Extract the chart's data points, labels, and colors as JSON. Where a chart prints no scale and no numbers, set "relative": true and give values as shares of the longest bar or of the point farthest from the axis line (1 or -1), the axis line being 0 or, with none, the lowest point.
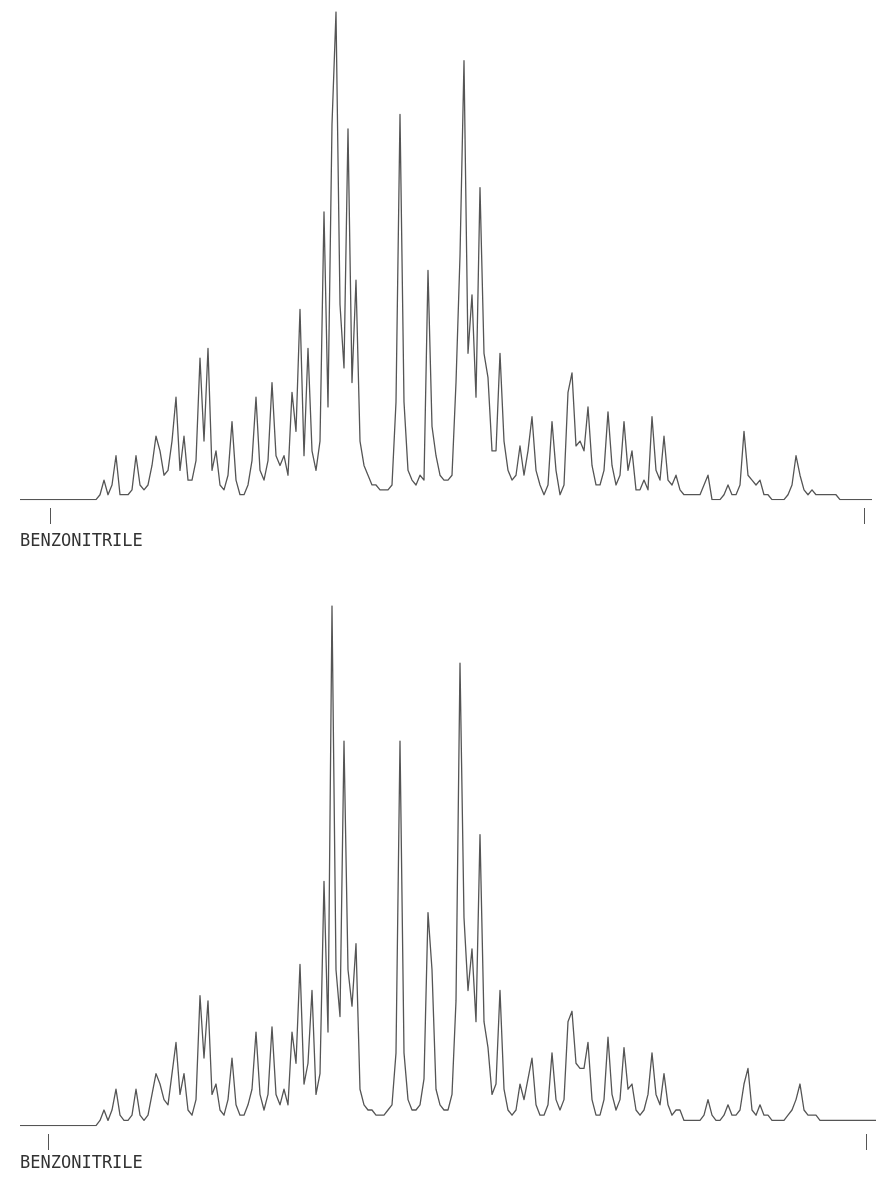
{
  "chart_data": [
    {
      "type": "line",
      "title": "BENZONITRILE",
      "relative": true,
      "color": "#555555",
      "marker": "none",
      "line_style": "solid",
      "categories": [
        null,
        null,
        null,
        null,
        null,
        null,
        null,
        null,
        null,
        null,
        null,
        null,
        null,
        null,
        null,
        null,
        null,
        null,
        null,
        null,
        null,
        null,
        null,
        null,
        null,
        null,
        null,
        null,
        null,
        null,
        null,
        null,
        null,
        null,
        null,
        null,
        null,
        null,
        null,
        null,
        null,
        null,
        null,
        null,
        null,
        null,
        null,
        null,
        null,
        null,
        null,
        null,
        null,
        null,
        null,
        null,
        null,
        null,
        null,
        null,
        null,
        null,
        null,
        null,
        null,
        null,
        null,
        null,
        null,
        null,
        null,
        null,
        null,
        null,
        null,
        null,
        null,
        null,
        null,
        null,
        null,
        null,
        null,
        null,
        null,
        null,
        null,
        null,
        null,
        null,
        null,
        null,
        null,
        null,
        null,
        null,
        null,
        null,
        null,
        null,
        null,
        null,
        null,
        null,
        null,
        null,
        null,
        null,
        null,
        null,
        null,
        null,
        null,
        null,
        null,
        null,
        null,
        null,
        null,
        null,
        null,
        null,
        null,
        null,
        null,
        null,
        null,
        null,
        null,
        null,
        null,
        null,
        null,
        null,
        null,
        null,
        null,
        null,
        null,
        null,
        null,
        null,
        null,
        null,
        null,
        null,
        null,
        null,
        null,
        null,
        null,
        null,
        null,
        null,
        null,
        null,
        null,
        null,
        null,
        null,
        null,
        null,
        null,
        null,
        null,
        null,
        null,
        null,
        null,
        null,
        null,
        null,
        null,
        null,
        null,
        null,
        null,
        null,
        null,
        null,
        null,
        null,
        null,
        null,
        null,
        null,
        null,
        null,
        null,
        null,
        null,
        null,
        null,
        null,
        null,
        null,
        null,
        null,
        null,
        null,
        null,
        null,
        null,
        null,
        null,
        null,
        null,
        null,
        null,
        null,
        null,
        null,
        null,
        null
      ],
      "values": [
        0,
        0,
        0,
        0,
        0,
        0,
        0,
        0,
        0,
        0,
        0,
        0,
        0,
        0,
        0,
        0,
        0,
        0,
        0,
        0,
        0.01,
        0.04,
        0.01,
        0.03,
        0.09,
        0.01,
        0.01,
        0.01,
        0.02,
        0.09,
        0.03,
        0.02,
        0.03,
        0.07,
        0.13,
        0.1,
        0.05,
        0.06,
        0.12,
        0.21,
        0.06,
        0.13,
        0.04,
        0.04,
        0.08,
        0.29,
        0.12,
        0.31,
        0.06,
        0.1,
        0.03,
        0.02,
        0.05,
        0.16,
        0.04,
        0.01,
        0.01,
        0.03,
        0.08,
        0.21,
        0.06,
        0.04,
        0.08,
        0.24,
        0.09,
        0.07,
        0.09,
        0.05,
        0.22,
        0.14,
        0.39,
        0.09,
        0.31,
        0.1,
        0.06,
        0.12,
        0.59,
        0.19,
        0.77,
        1,
        0.4,
        0.27,
        0.76,
        0.24,
        0.45,
        0.12,
        0.07,
        0.05,
        0.03,
        0.03,
        0.02,
        0.02,
        0.02,
        0.03,
        0.2,
        0.79,
        0.2,
        0.06,
        0.04,
        0.03,
        0.05,
        0.04,
        0.47,
        0.15,
        0.09,
        0.05,
        0.04,
        0.04,
        0.05,
        0.24,
        0.5,
        0.9,
        0.3,
        0.42,
        0.21,
        0.64,
        0.3,
        0.25,
        0.1,
        0.1,
        0.3,
        0.12,
        0.06,
        0.04,
        0.05,
        0.11,
        0.05,
        0.1,
        0.17,
        0.06,
        0.03,
        0.01,
        0.03,
        0.16,
        0.06,
        0.01,
        0.03,
        0.22,
        0.26,
        0.11,
        0.12,
        0.1,
        0.19,
        0.07,
        0.03,
        0.03,
        0.06,
        0.18,
        0.07,
        0.03,
        0.05,
        0.16,
        0.06,
        0.1,
        0.02,
        0.02,
        0.04,
        0.02,
        0.17,
        0.06,
        0.04,
        0.13,
        0.04,
        0.03,
        0.05,
        0.02,
        0.01,
        0.01,
        0.01,
        0.01,
        0.01,
        0.03,
        0.05,
        0,
        0,
        0,
        0.01,
        0.03,
        0.01,
        0.01,
        0.03,
        0.14,
        0.05,
        0.04,
        0.03,
        0.04,
        0.01,
        0.01,
        0,
        0,
        0,
        0,
        0.01,
        0.03,
        0.09,
        0.05,
        0.02,
        0.01,
        0.02,
        0.01,
        0.01,
        0.01,
        0.01,
        0.01,
        0.01,
        0,
        0,
        0,
        0,
        0,
        0,
        0,
        0,
        0
      ]
    },
    {
      "type": "line",
      "title": "BENZONITRILE",
      "relative": true,
      "color": "#555555",
      "marker": "none",
      "line_style": "solid",
      "categories": [
        null,
        null,
        null,
        null,
        null,
        null,
        null,
        null,
        null,
        null,
        null,
        null,
        null,
        null,
        null,
        null,
        null,
        null,
        null,
        null,
        null,
        null,
        null,
        null,
        null,
        null,
        null,
        null,
        null,
        null,
        null,
        null,
        null,
        null,
        null,
        null,
        null,
        null,
        null,
        null,
        null,
        null,
        null,
        null,
        null,
        null,
        null,
        null,
        null,
        null,
        null,
        null,
        null,
        null,
        null,
        null,
        null,
        null,
        null,
        null,
        null,
        null,
        null,
        null,
        null,
        null,
        null,
        null,
        null,
        null,
        null,
        null,
        null,
        null,
        null,
        null,
        null,
        null,
        null,
        null,
        null,
        null,
        null,
        null,
        null,
        null,
        null,
        null,
        null,
        null,
        null,
        null,
        null,
        null,
        null,
        null,
        null,
        null,
        null,
        null,
        null,
        null,
        null,
        null,
        null,
        null,
        null,
        null,
        null,
        null,
        null,
        null,
        null,
        null,
        null,
        null,
        null,
        null,
        null,
        null,
        null,
        null,
        null,
        null,
        null,
        null,
        null,
        null,
        null,
        null,
        null,
        null,
        null,
        null,
        null,
        null,
        null,
        null,
        null,
        null,
        null,
        null,
        null,
        null,
        null,
        null,
        null,
        null,
        null,
        null,
        null,
        null,
        null,
        null,
        null,
        null,
        null,
        null,
        null,
        null,
        null,
        null,
        null,
        null,
        null,
        null,
        null,
        null,
        null,
        null,
        null,
        null,
        null,
        null,
        null,
        null,
        null,
        null,
        null,
        null,
        null,
        null,
        null,
        null,
        null,
        null,
        null,
        null,
        null,
        null,
        null,
        null,
        null,
        null,
        null,
        null,
        null,
        null,
        null,
        null,
        null,
        null,
        null,
        null,
        null,
        null,
        null,
        null,
        null,
        null,
        null,
        null,
        null,
        null,
        null
      ],
      "values": [
        0,
        0,
        0,
        0,
        0,
        0,
        0,
        0,
        0,
        0,
        0,
        0,
        0,
        0,
        0,
        0,
        0,
        0,
        0,
        0,
        0.01,
        0.03,
        0.01,
        0.03,
        0.07,
        0.02,
        0.01,
        0.01,
        0.02,
        0.07,
        0.02,
        0.01,
        0.02,
        0.06,
        0.1,
        0.08,
        0.05,
        0.04,
        0.1,
        0.16,
        0.06,
        0.1,
        0.03,
        0.02,
        0.05,
        0.25,
        0.13,
        0.24,
        0.06,
        0.08,
        0.03,
        0.02,
        0.05,
        0.13,
        0.04,
        0.02,
        0.02,
        0.04,
        0.07,
        0.18,
        0.06,
        0.03,
        0.06,
        0.19,
        0.06,
        0.04,
        0.07,
        0.04,
        0.18,
        0.12,
        0.31,
        0.08,
        0.12,
        0.26,
        0.06,
        0.1,
        0.47,
        0.18,
        1,
        0.3,
        0.21,
        0.74,
        0.3,
        0.23,
        0.35,
        0.07,
        0.04,
        0.03,
        0.03,
        0.02,
        0.02,
        0.02,
        0.03,
        0.04,
        0.14,
        0.74,
        0.14,
        0.05,
        0.03,
        0.03,
        0.04,
        0.09,
        0.41,
        0.3,
        0.07,
        0.04,
        0.03,
        0.03,
        0.06,
        0.24,
        0.89,
        0.4,
        0.26,
        0.34,
        0.2,
        0.56,
        0.2,
        0.15,
        0.06,
        0.08,
        0.26,
        0.07,
        0.03,
        0.02,
        0.03,
        0.08,
        0.05,
        0.09,
        0.13,
        0.04,
        0.02,
        0.02,
        0.04,
        0.14,
        0.05,
        0.03,
        0.05,
        0.2,
        0.22,
        0.12,
        0.11,
        0.11,
        0.16,
        0.05,
        0.02,
        0.02,
        0.05,
        0.17,
        0.06,
        0.03,
        0.05,
        0.15,
        0.07,
        0.08,
        0.03,
        0.02,
        0.03,
        0.06,
        0.14,
        0.06,
        0.04,
        0.1,
        0.04,
        0.02,
        0.03,
        0.03,
        0.01,
        0.01,
        0.01,
        0.01,
        0.01,
        0.02,
        0.05,
        0.02,
        0.01,
        0.01,
        0.02,
        0.04,
        0.02,
        0.02,
        0.03,
        0.08,
        0.11,
        0.03,
        0.02,
        0.04,
        0.02,
        0.02,
        0.01,
        0.01,
        0.01,
        0.01,
        0.02,
        0.03,
        0.05,
        0.08,
        0.03,
        0.02,
        0.02,
        0.02,
        0.01,
        0.01,
        0.01,
        0.01,
        0.01,
        0.01,
        0.01,
        0.01,
        0.01,
        0.01,
        0.01,
        0.01,
        0.01,
        0.01,
        0.01
      ]
    }
  ]
}
